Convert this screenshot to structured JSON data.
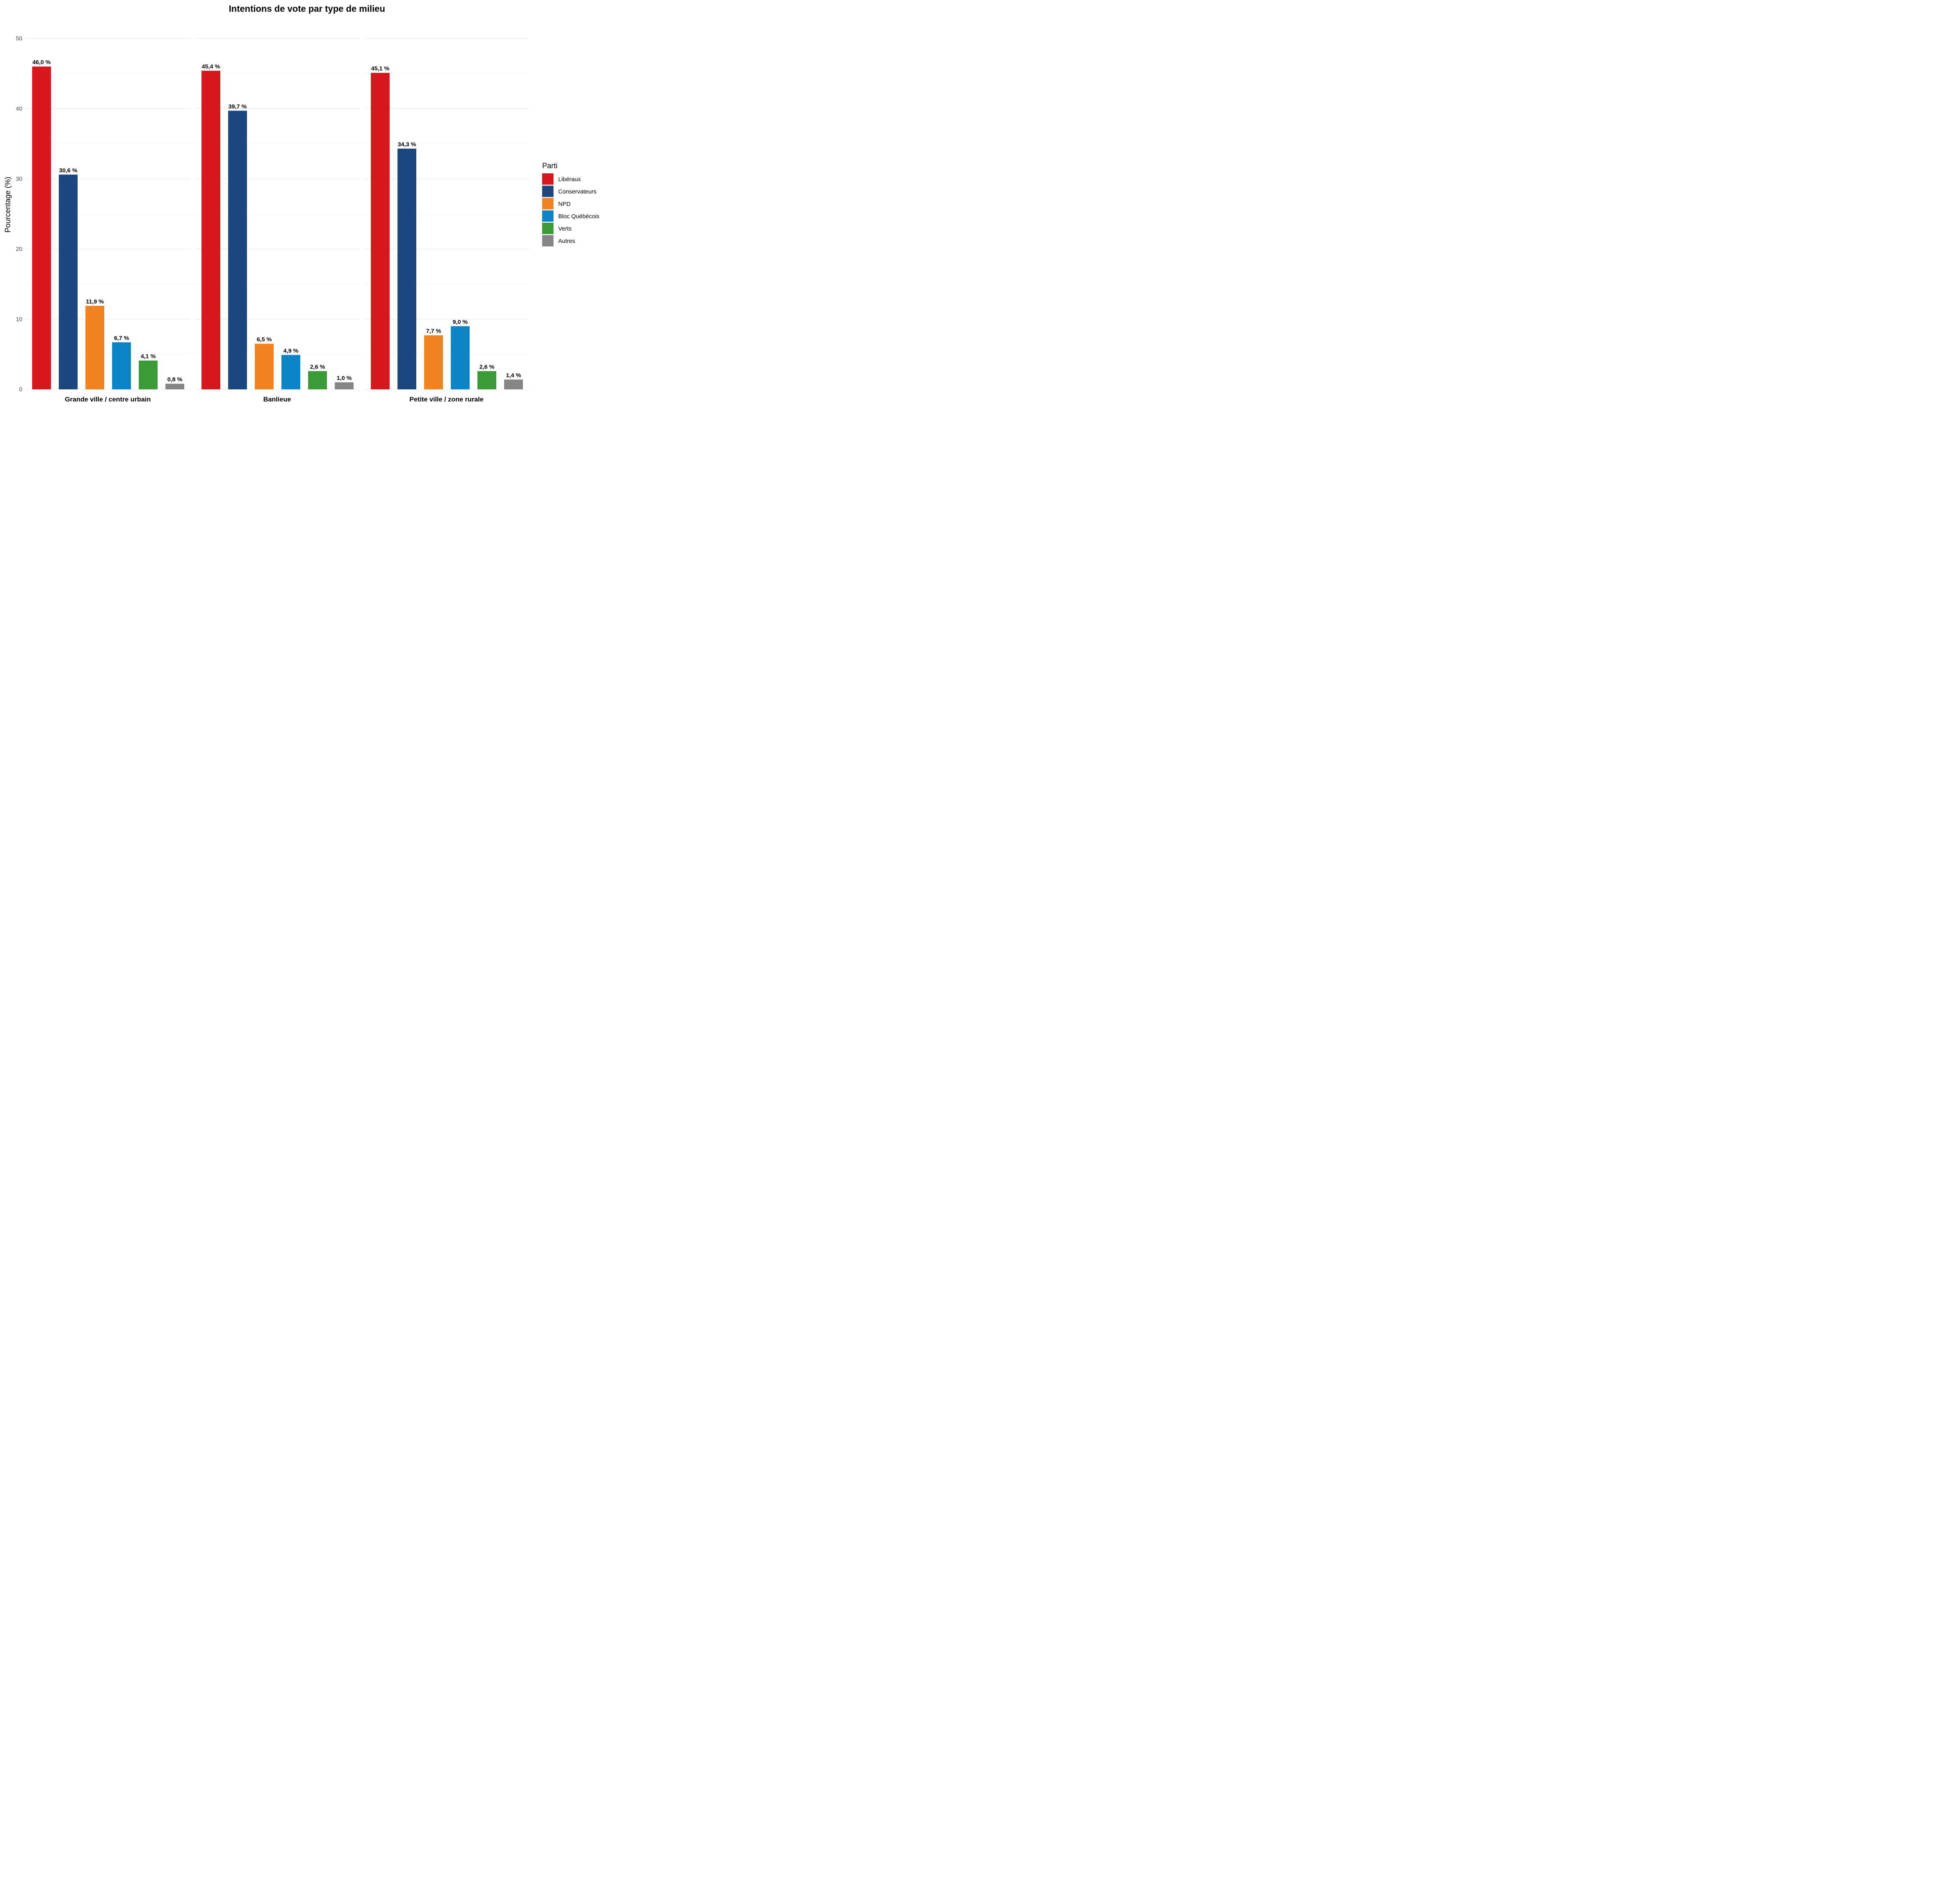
{
  "chart_data": {
    "type": "bar",
    "title": "Intentions de vote par type de milieu",
    "xlabel": "",
    "ylabel": "Pourcentage (%)",
    "ylim": [
      0,
      50
    ],
    "yticks": [
      0,
      10,
      20,
      30,
      40,
      50
    ],
    "grid": true,
    "legend": {
      "title": "Parti",
      "position": "right"
    },
    "series": [
      {
        "name": "Libéraux",
        "color": "#D7191F"
      },
      {
        "name": "Conservateurs",
        "color": "#1C4780"
      },
      {
        "name": "NPD",
        "color": "#F28322"
      },
      {
        "name": "Bloc Québécois",
        "color": "#0A84C6"
      },
      {
        "name": "Verts",
        "color": "#3A9B36"
      },
      {
        "name": "Autres",
        "color": "#858585"
      }
    ],
    "facets": [
      {
        "name": "Grande ville / centre urbain",
        "values": [
          46.0,
          30.6,
          11.9,
          6.7,
          4.1,
          0.8
        ],
        "labels": [
          "46,0 %",
          "30,6 %",
          "11,9 %",
          "6,7 %",
          "4,1 %",
          "0,8 %"
        ]
      },
      {
        "name": "Banlieue",
        "values": [
          45.4,
          39.7,
          6.5,
          4.9,
          2.6,
          1.0
        ],
        "labels": [
          "45,4 %",
          "39,7 %",
          "6,5 %",
          "4,9 %",
          "2,6 %",
          "1,0 %"
        ]
      },
      {
        "name": "Petite ville / zone rurale",
        "values": [
          45.1,
          34.3,
          7.7,
          9.0,
          2.6,
          1.4
        ],
        "labels": [
          "45,1 %",
          "34,3 %",
          "7,7 %",
          "9,0 %",
          "2,6 %",
          "1,4 %"
        ]
      }
    ]
  }
}
